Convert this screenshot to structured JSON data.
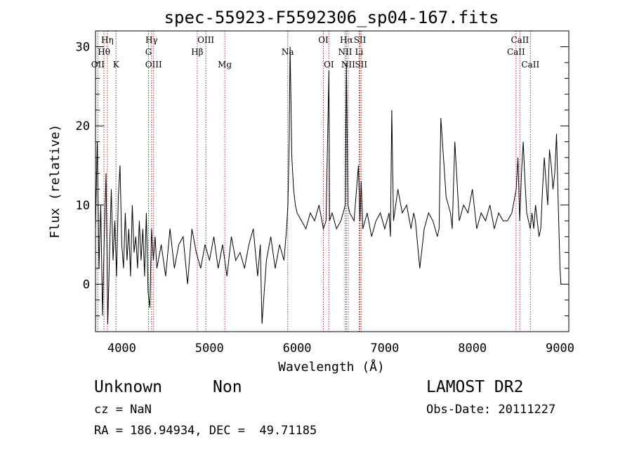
{
  "chart_data": {
    "type": "line",
    "title": "spec-55923-F5592306_sp04-167.fits",
    "xlabel": "Wavelength (Å)",
    "ylabel": "Flux (relative)",
    "xlim": [
      3700,
      9100
    ],
    "ylim": [
      -6,
      32
    ],
    "x_ticks": [
      4000,
      5000,
      6000,
      7000,
      8000,
      9000
    ],
    "y_ticks": [
      0,
      10,
      20,
      30
    ],
    "grid": false,
    "line_color": "#000000",
    "marker_color": "#a52a2a",
    "series": [
      {
        "x": [
          3700,
          3720,
          3740,
          3760,
          3780,
          3800,
          3820,
          3840,
          3860,
          3880,
          3900,
          3920,
          3940,
          3960,
          3980,
          4000,
          4020,
          4040,
          4060,
          4080,
          4100,
          4120,
          4140,
          4160,
          4180,
          4200,
          4220,
          4240,
          4260,
          4280,
          4300,
          4320,
          4340,
          4360,
          4380,
          4400,
          4450,
          4500,
          4550,
          4600,
          4650,
          4700,
          4750,
          4800,
          4850,
          4900,
          4950,
          5000,
          5050,
          5100,
          5150,
          5200,
          5250,
          5300,
          5350,
          5400,
          5450,
          5500,
          5550,
          5580,
          5600,
          5650,
          5700,
          5750,
          5800,
          5850,
          5880,
          5895,
          5910,
          5920,
          5940,
          5960,
          5980,
          6000,
          6050,
          6100,
          6150,
          6200,
          6250,
          6300,
          6330,
          6363,
          6370,
          6400,
          6450,
          6500,
          6550,
          6563,
          6580,
          6600,
          6650,
          6700,
          6717,
          6731,
          6750,
          6800,
          6850,
          6900,
          6950,
          7000,
          7050,
          7065,
          7080,
          7100,
          7150,
          7200,
          7250,
          7300,
          7330,
          7350,
          7400,
          7450,
          7500,
          7550,
          7600,
          7620,
          7640,
          7700,
          7750,
          7770,
          7800,
          7850,
          7900,
          7950,
          8000,
          8050,
          8100,
          8150,
          8200,
          8250,
          8300,
          8350,
          8400,
          8450,
          8500,
          8520,
          8540,
          8560,
          8580,
          8600,
          8620,
          8640,
          8660,
          8680,
          8700,
          8720,
          8740,
          8760,
          8780,
          8800,
          8820,
          8840,
          8860,
          8880,
          8900,
          8920,
          8940,
          8960,
          8980,
          9000,
          9010
        ],
        "y": [
          7,
          18,
          2,
          10,
          -4,
          6,
          14,
          -5,
          4,
          12,
          3,
          8,
          1,
          11,
          15,
          5,
          2,
          9,
          3,
          7,
          1,
          10,
          4,
          6,
          2,
          8,
          3,
          7,
          1,
          9,
          -1,
          -3,
          7,
          3,
          6,
          2,
          5,
          1,
          7,
          2,
          5,
          6,
          0,
          7,
          4,
          2,
          5,
          3,
          6,
          2,
          5,
          1,
          6,
          3,
          4,
          2,
          5,
          7,
          1,
          5,
          -5,
          3,
          6,
          2,
          5,
          3,
          7,
          10,
          18,
          30,
          16,
          12,
          10,
          9,
          8,
          7,
          9,
          8,
          10,
          7,
          8,
          27,
          8,
          9,
          7,
          8,
          10,
          28,
          10,
          9,
          8,
          15,
          8,
          13,
          7,
          9,
          6,
          8,
          9,
          7,
          9,
          6,
          22,
          8,
          12,
          9,
          10,
          7,
          9,
          8,
          2,
          7,
          9,
          8,
          6,
          7,
          21,
          11,
          9,
          7,
          18,
          8,
          10,
          9,
          12,
          7,
          9,
          8,
          10,
          7,
          9,
          8,
          8,
          9,
          12,
          16,
          8,
          14,
          18,
          13,
          9,
          8,
          7,
          9,
          7,
          10,
          8,
          6,
          7,
          12,
          16,
          13,
          10,
          17,
          15,
          12,
          14,
          19,
          10,
          2,
          0
        ]
      }
    ],
    "line_markers": [
      {
        "label": "Hη",
        "x": 3835,
        "row": 0
      },
      {
        "label": "Hθ",
        "x": 3797,
        "row": 1
      },
      {
        "label": "OII",
        "x": 3727,
        "row": 2
      },
      {
        "label": "K",
        "x": 3934,
        "row": 2
      },
      {
        "label": "Hγ",
        "x": 4340,
        "row": 0
      },
      {
        "label": "G",
        "x": 4305,
        "row": 1
      },
      {
        "label": "OIII",
        "x": 4363,
        "row": 2
      },
      {
        "label": "OIII",
        "x": 4959,
        "row": 0
      },
      {
        "label": "Hβ",
        "x": 4861,
        "row": 1
      },
      {
        "label": "Mg",
        "x": 5175,
        "row": 2
      },
      {
        "label": "Na",
        "x": 5893,
        "row": 1
      },
      {
        "label": "OI",
        "x": 6300,
        "row": 0
      },
      {
        "label": "OI",
        "x": 6363,
        "row": 2
      },
      {
        "label": "Hα",
        "x": 6563,
        "row": 0
      },
      {
        "label": "NII",
        "x": 6548,
        "row": 1
      },
      {
        "label": "NII",
        "x": 6583,
        "row": 2
      },
      {
        "label": "SII",
        "x": 6717,
        "row": 0
      },
      {
        "label": "Li",
        "x": 6708,
        "row": 1
      },
      {
        "label": "SII",
        "x": 6731,
        "row": 2
      },
      {
        "label": "CaII",
        "x": 8542,
        "row": 0
      },
      {
        "label": "CaII",
        "x": 8498,
        "row": 1
      },
      {
        "label": "CaII",
        "x": 8662,
        "row": 2
      }
    ]
  },
  "info": {
    "object_class": "Unknown",
    "subclass": "Non",
    "survey": "LAMOST DR2",
    "redshift": "cz = NaN",
    "obs_date": "Obs-Date: 20111227",
    "coords": "RA = 186.94934, DEC =  49.71185"
  }
}
